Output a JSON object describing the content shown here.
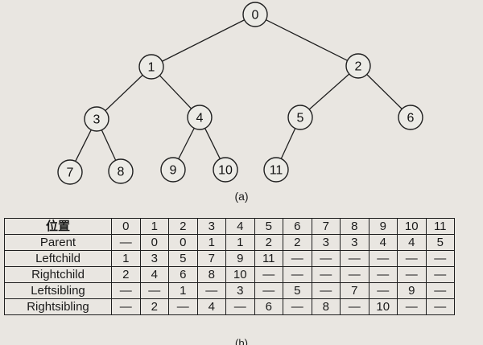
{
  "tree": {
    "nodes": [
      "0",
      "1",
      "2",
      "3",
      "4",
      "5",
      "6",
      "7",
      "8",
      "9",
      "10",
      "11"
    ],
    "caption": "(a)"
  },
  "table": {
    "header_label": "位置",
    "columns": [
      "0",
      "1",
      "2",
      "3",
      "4",
      "5",
      "6",
      "7",
      "8",
      "9",
      "10",
      "11"
    ],
    "rows": [
      {
        "label": "Parent",
        "values": [
          "—",
          "0",
          "0",
          "1",
          "1",
          "2",
          "2",
          "3",
          "3",
          "4",
          "4",
          "5"
        ]
      },
      {
        "label": "Leftchild",
        "values": [
          "1",
          "3",
          "5",
          "7",
          "9",
          "11",
          "—",
          "—",
          "—",
          "—",
          "—",
          "—"
        ]
      },
      {
        "label": "Rightchild",
        "values": [
          "2",
          "4",
          "6",
          "8",
          "10",
          "—",
          "—",
          "—",
          "—",
          "—",
          "—",
          "—"
        ]
      },
      {
        "label": "Leftsibling",
        "values": [
          "—",
          "—",
          "1",
          "—",
          "3",
          "—",
          "5",
          "—",
          "7",
          "—",
          "9",
          "—"
        ]
      },
      {
        "label": "Rightsibling",
        "values": [
          "—",
          "2",
          "—",
          "4",
          "—",
          "6",
          "—",
          "8",
          "—",
          "10",
          "—",
          "—"
        ]
      }
    ],
    "caption": "(b)"
  }
}
